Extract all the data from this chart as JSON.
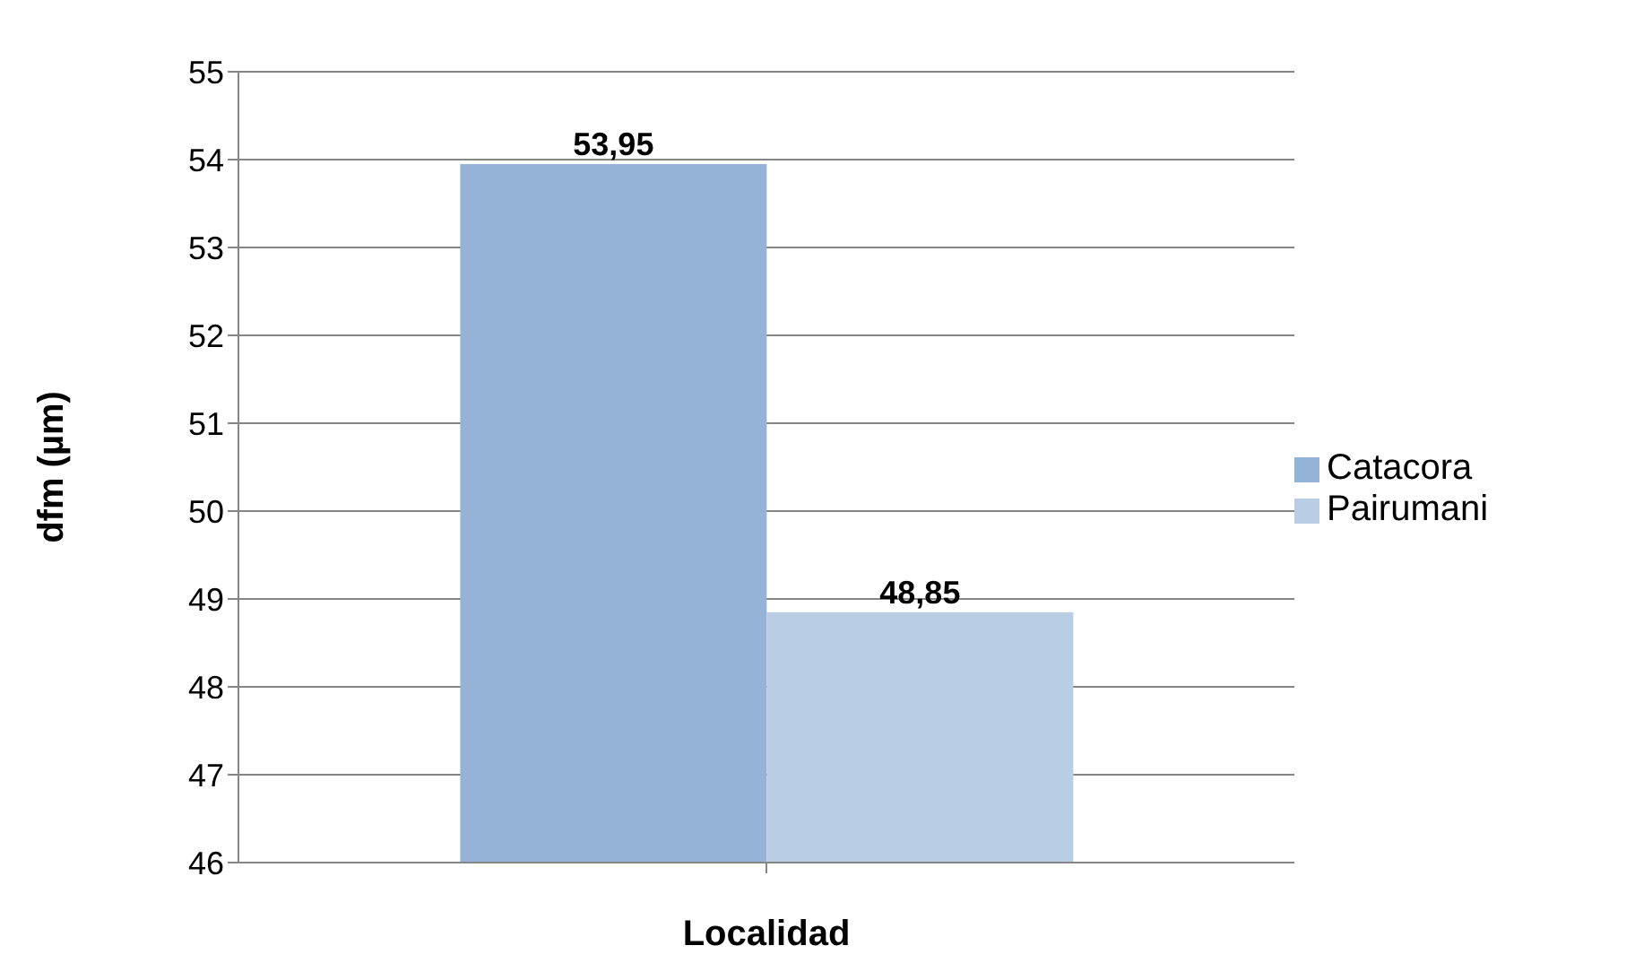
{
  "chart_data": {
    "type": "bar",
    "ylabel": "dfm (µm)",
    "xlabel": "Localidad",
    "categories": [
      null
    ],
    "series": [
      {
        "name": "Catacora",
        "color": "#95b3d7",
        "values": [
          53.95
        ],
        "value_labels": [
          "53,95"
        ]
      },
      {
        "name": "Pairumani",
        "color": "#b9cde5",
        "values": [
          48.85
        ],
        "value_labels": [
          "48,85"
        ]
      }
    ],
    "ylim": [
      46,
      55
    ],
    "yticks": [
      46,
      47,
      48,
      49,
      50,
      51,
      52,
      53,
      54,
      55
    ],
    "grid": "y",
    "legend": "right"
  }
}
